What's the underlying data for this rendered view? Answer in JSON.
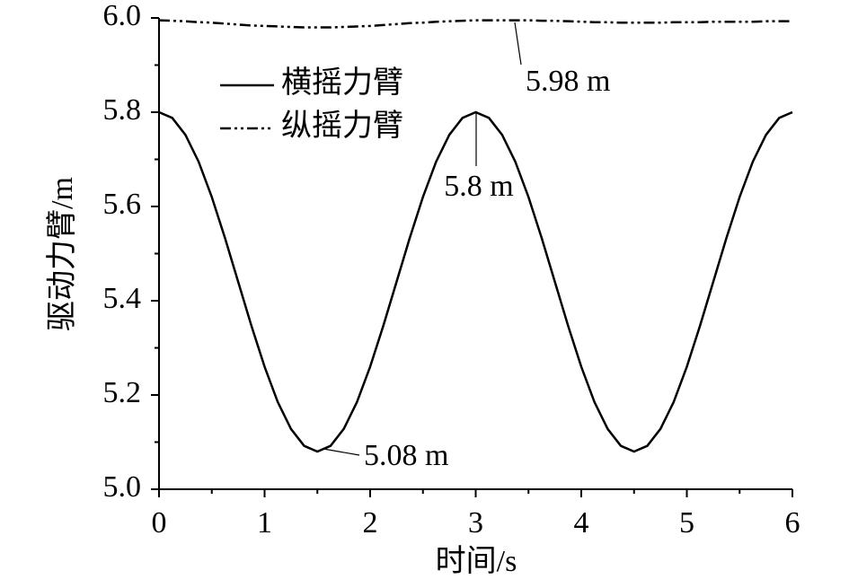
{
  "chart_data": {
    "type": "line",
    "x_label": "时间/s",
    "y_label": "驱动力臂/m",
    "x": [
      0,
      0.125,
      0.25,
      0.375,
      0.5,
      0.625,
      0.75,
      0.875,
      1,
      1.125,
      1.25,
      1.375,
      1.5,
      1.625,
      1.75,
      1.875,
      2,
      2.125,
      2.25,
      2.375,
      2.5,
      2.625,
      2.75,
      2.875,
      3,
      3.125,
      3.25,
      3.375,
      3.5,
      3.625,
      3.75,
      3.875,
      4,
      4.125,
      4.25,
      4.375,
      4.5,
      4.625,
      4.75,
      4.875,
      5,
      5.125,
      5.25,
      5.375,
      5.5,
      5.625,
      5.75,
      5.875,
      6
    ],
    "series": [
      {
        "name": "横摇力臂",
        "color": "#000000",
        "dash": "solid",
        "values": [
          5.8,
          5.788,
          5.752,
          5.695,
          5.62,
          5.533,
          5.44,
          5.347,
          5.26,
          5.185,
          5.128,
          5.092,
          5.08,
          5.092,
          5.128,
          5.185,
          5.26,
          5.347,
          5.44,
          5.533,
          5.62,
          5.695,
          5.752,
          5.788,
          5.8,
          5.788,
          5.752,
          5.695,
          5.62,
          5.533,
          5.44,
          5.347,
          5.26,
          5.185,
          5.128,
          5.092,
          5.08,
          5.092,
          5.128,
          5.185,
          5.26,
          5.347,
          5.44,
          5.533,
          5.62,
          5.695,
          5.752,
          5.788,
          5.8
        ]
      },
      {
        "name": "纵摇力臂",
        "color": "#000000",
        "dash": "dashdotdot",
        "values": [
          5.995,
          5.994,
          5.993,
          5.991,
          5.99,
          5.988,
          5.986,
          5.984,
          5.983,
          5.982,
          5.981,
          5.98,
          5.98,
          5.98,
          5.981,
          5.982,
          5.983,
          5.985,
          5.987,
          5.989,
          5.99,
          5.992,
          5.993,
          5.994,
          5.995,
          5.995,
          5.995,
          5.995,
          5.995,
          5.994,
          5.994,
          5.993,
          5.992,
          5.991,
          5.991,
          5.99,
          5.99,
          5.99,
          5.99,
          5.991,
          5.991,
          5.991,
          5.992,
          5.992,
          5.992,
          5.992,
          5.993,
          5.993,
          5.993
        ]
      }
    ],
    "annotations": [
      "5.98 m",
      "5.8 m",
      "5.08 m"
    ],
    "xlim": [
      0,
      6
    ],
    "xticks": [
      0,
      1,
      2,
      3,
      4,
      5,
      6
    ],
    "ylim": [
      5.0,
      6.0
    ],
    "yticks": [
      {
        "value": 5.0,
        "label": "5.0"
      },
      5.2,
      5.4,
      5.6,
      5.8,
      {
        "value": 6.0,
        "label": "6.0"
      }
    ],
    "legend": "upper-left",
    "grid": false
  }
}
